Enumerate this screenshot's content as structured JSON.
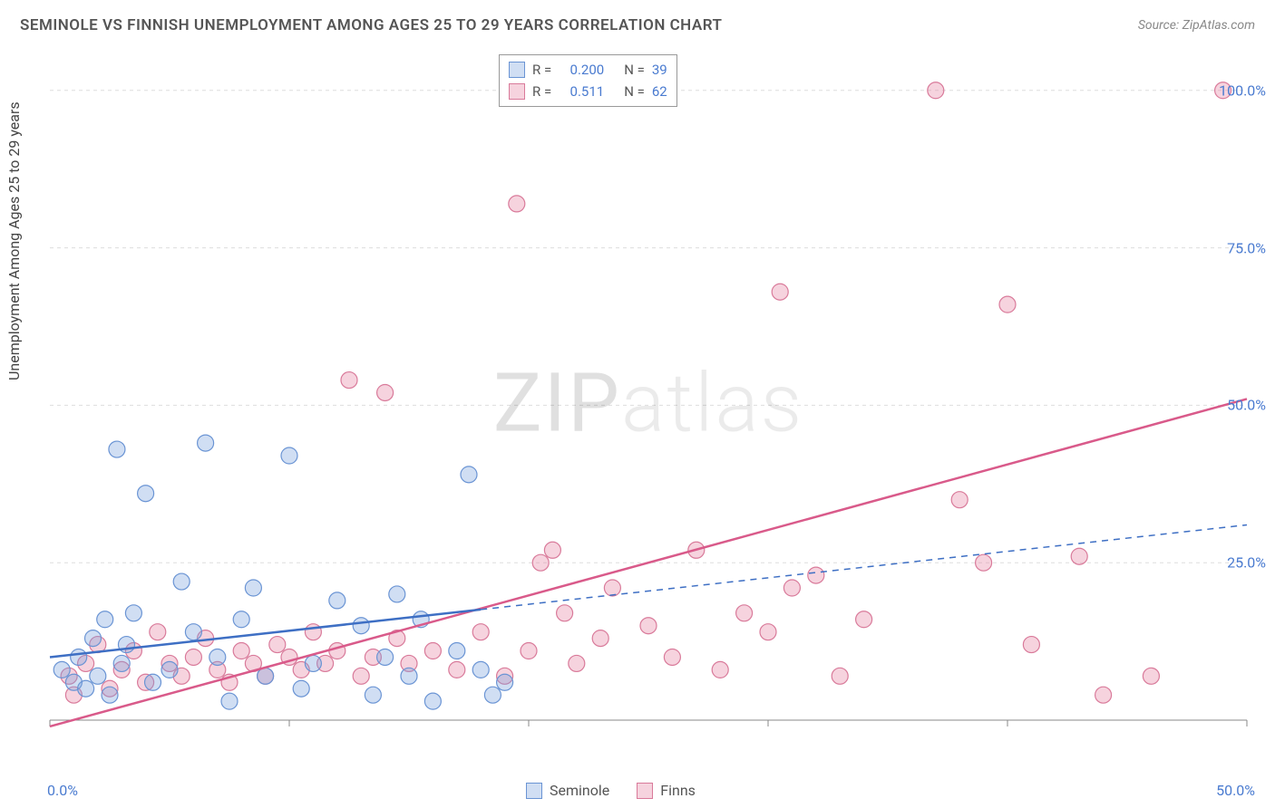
{
  "title": "SEMINOLE VS FINNISH UNEMPLOYMENT AMONG AGES 25 TO 29 YEARS CORRELATION CHART",
  "source": "Source: ZipAtlas.com",
  "y_axis_label": "Unemployment Among Ages 25 to 29 years",
  "watermark_zip": "ZIP",
  "watermark_atlas": "atlas",
  "chart": {
    "type": "scatter",
    "xlim": [
      0,
      50
    ],
    "ylim": [
      0,
      105
    ],
    "x_ticks": [
      0,
      10,
      20,
      30,
      40,
      50
    ],
    "x_tick_labels": [
      "0.0%",
      "",
      "",
      "",
      "",
      "50.0%"
    ],
    "y_gridlines": [
      25,
      50,
      75,
      100
    ],
    "y_tick_labels": [
      "25.0%",
      "50.0%",
      "75.0%",
      "100.0%"
    ],
    "grid_color": "#dddddd",
    "axis_color": "#888888",
    "background": "#ffffff",
    "tick_label_color": "#4a7bd0",
    "tick_label_fontsize": 16
  },
  "series": {
    "seminole": {
      "label": "Seminole",
      "color_fill": "rgba(120,160,220,0.35)",
      "color_stroke": "#6a94d4",
      "marker_radius": 9,
      "trend_color": "#3e6fc4",
      "trend_width": 2.5,
      "trend_dash_after_x": 18,
      "trend_start_y": 10,
      "trend_end_y": 31,
      "R": "0.200",
      "N": "39",
      "points": [
        [
          0.5,
          8
        ],
        [
          1.0,
          6
        ],
        [
          1.2,
          10
        ],
        [
          1.5,
          5
        ],
        [
          1.8,
          13
        ],
        [
          2.0,
          7
        ],
        [
          2.3,
          16
        ],
        [
          2.5,
          4
        ],
        [
          2.8,
          43
        ],
        [
          3.0,
          9
        ],
        [
          3.2,
          12
        ],
        [
          3.5,
          17
        ],
        [
          4.0,
          36
        ],
        [
          4.3,
          6
        ],
        [
          5.0,
          8
        ],
        [
          5.5,
          22
        ],
        [
          6.0,
          14
        ],
        [
          6.5,
          44
        ],
        [
          7.0,
          10
        ],
        [
          7.5,
          3
        ],
        [
          8.0,
          16
        ],
        [
          8.5,
          21
        ],
        [
          9.0,
          7
        ],
        [
          10.0,
          42
        ],
        [
          10.5,
          5
        ],
        [
          11.0,
          9
        ],
        [
          12.0,
          19
        ],
        [
          13.0,
          15
        ],
        [
          13.5,
          4
        ],
        [
          14.0,
          10
        ],
        [
          14.5,
          20
        ],
        [
          15.0,
          7
        ],
        [
          15.5,
          16
        ],
        [
          16.0,
          3
        ],
        [
          17.0,
          11
        ],
        [
          17.5,
          39
        ],
        [
          18.0,
          8
        ],
        [
          18.5,
          4
        ],
        [
          19.0,
          6
        ]
      ]
    },
    "finns": {
      "label": "Finns",
      "color_fill": "rgba(230,130,160,0.35)",
      "color_stroke": "#d97a9a",
      "marker_radius": 9,
      "trend_color": "#d95a8a",
      "trend_width": 2.5,
      "trend_start_y": -1,
      "trend_end_y": 51,
      "R": "0.511",
      "N": "62",
      "points": [
        [
          0.8,
          7
        ],
        [
          1.0,
          4
        ],
        [
          1.5,
          9
        ],
        [
          2.0,
          12
        ],
        [
          2.5,
          5
        ],
        [
          3.0,
          8
        ],
        [
          3.5,
          11
        ],
        [
          4.0,
          6
        ],
        [
          4.5,
          14
        ],
        [
          5.0,
          9
        ],
        [
          5.5,
          7
        ],
        [
          6.0,
          10
        ],
        [
          6.5,
          13
        ],
        [
          7.0,
          8
        ],
        [
          7.5,
          6
        ],
        [
          8.0,
          11
        ],
        [
          8.5,
          9
        ],
        [
          9.0,
          7
        ],
        [
          9.5,
          12
        ],
        [
          10.0,
          10
        ],
        [
          10.5,
          8
        ],
        [
          11.0,
          14
        ],
        [
          11.5,
          9
        ],
        [
          12.0,
          11
        ],
        [
          12.5,
          54
        ],
        [
          13.0,
          7
        ],
        [
          13.5,
          10
        ],
        [
          14.0,
          52
        ],
        [
          14.5,
          13
        ],
        [
          15.0,
          9
        ],
        [
          16.0,
          11
        ],
        [
          17.0,
          8
        ],
        [
          18.0,
          14
        ],
        [
          19.0,
          7
        ],
        [
          19.5,
          82
        ],
        [
          20.0,
          11
        ],
        [
          20.5,
          25
        ],
        [
          21.0,
          27
        ],
        [
          21.5,
          17
        ],
        [
          22.0,
          9
        ],
        [
          23.0,
          13
        ],
        [
          23.5,
          21
        ],
        [
          25.0,
          15
        ],
        [
          26.0,
          10
        ],
        [
          27.0,
          27
        ],
        [
          28.0,
          8
        ],
        [
          29.0,
          17
        ],
        [
          30.0,
          14
        ],
        [
          30.5,
          68
        ],
        [
          31.0,
          21
        ],
        [
          32.0,
          23
        ],
        [
          33.0,
          7
        ],
        [
          34.0,
          16
        ],
        [
          37.0,
          100
        ],
        [
          38.0,
          35
        ],
        [
          39.0,
          25
        ],
        [
          40.0,
          66
        ],
        [
          41.0,
          12
        ],
        [
          43.0,
          26
        ],
        [
          44.0,
          4
        ],
        [
          46.0,
          7
        ],
        [
          49.0,
          100
        ]
      ]
    }
  },
  "legend_top": {
    "r_label": "R =",
    "n_label": "N ="
  }
}
